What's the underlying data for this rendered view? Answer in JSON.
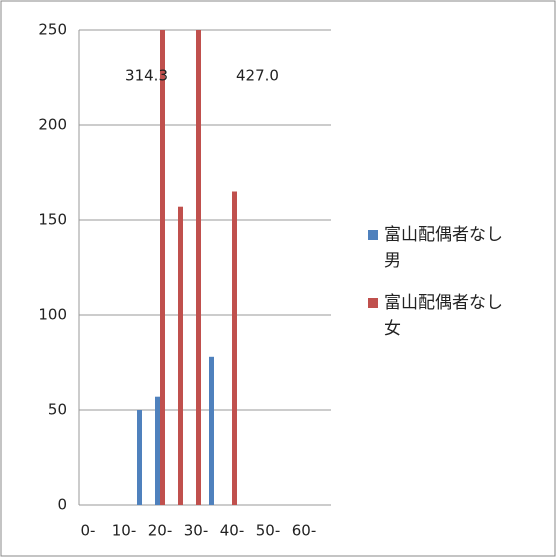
{
  "chart_data": {
    "type": "bar",
    "categories": [
      "0-",
      null,
      "10-",
      null,
      "20-",
      null,
      "30-",
      null,
      "40-",
      null,
      "50-",
      null,
      "60-",
      null
    ],
    "series": [
      {
        "name": "富山配偶者なし男",
        "color": "#4f81bd",
        "values": [
          0,
          0,
          0,
          50,
          57,
          0,
          0,
          78,
          0,
          0,
          0,
          0,
          0,
          0
        ]
      },
      {
        "name": "富山配偶者なし女",
        "color": "#c0504d",
        "values": [
          0,
          0,
          0,
          0,
          314.3,
          157,
          427.0,
          0,
          165,
          0,
          0,
          0,
          0,
          0
        ],
        "value_labels": [
          null,
          null,
          null,
          null,
          "314.3",
          null,
          "427.0",
          null,
          null,
          null,
          null,
          null,
          null,
          null
        ]
      }
    ],
    "ylim": [
      0,
      250
    ],
    "yticks": [
      0,
      50,
      100,
      150,
      200,
      250
    ],
    "grid": true,
    "legend": "right"
  }
}
